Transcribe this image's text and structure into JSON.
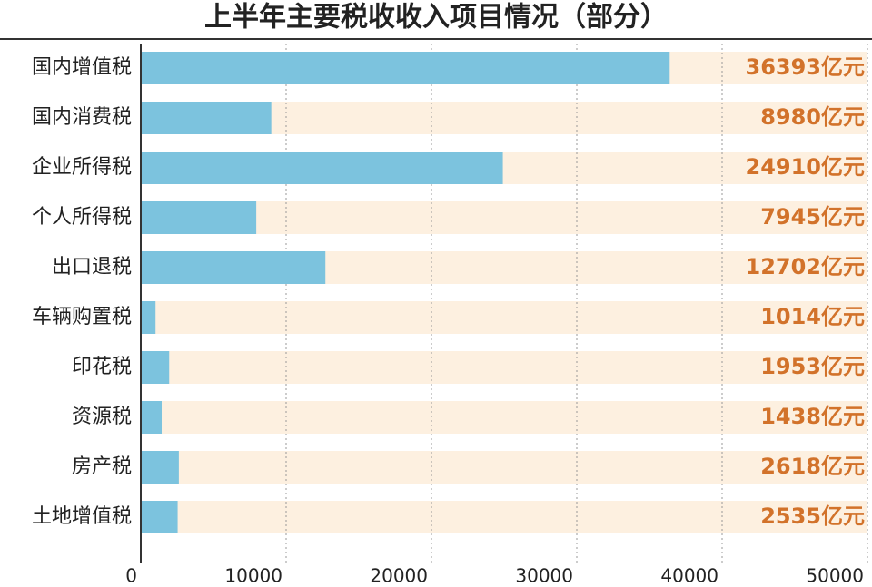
{
  "chart_data": {
    "type": "bar",
    "orientation": "horizontal",
    "title": "上半年主要税收收入项目情况（部分）",
    "categories": [
      "国内增值税",
      "国内消费税",
      "企业所得税",
      "个人所得税",
      "出口退税",
      "车辆购置税",
      "印花税",
      "资源税",
      "房产税",
      "土地增值税"
    ],
    "values": [
      36393,
      8980,
      24910,
      7945,
      12702,
      1014,
      1953,
      1438,
      2618,
      2535
    ],
    "value_labels": [
      "36393亿元",
      "8980亿元",
      "24910亿元",
      "7945亿元",
      "12702亿元",
      "1014亿元",
      "1953亿元",
      "1438亿元",
      "2618亿元",
      "2535亿元"
    ],
    "color": "#7cc3de",
    "track_color": "#fdf0e0",
    "label_color": "#d2722a",
    "xlim": [
      0,
      50000
    ],
    "xticks": [
      0,
      10000,
      20000,
      30000,
      40000,
      50000
    ],
    "grid": true
  }
}
